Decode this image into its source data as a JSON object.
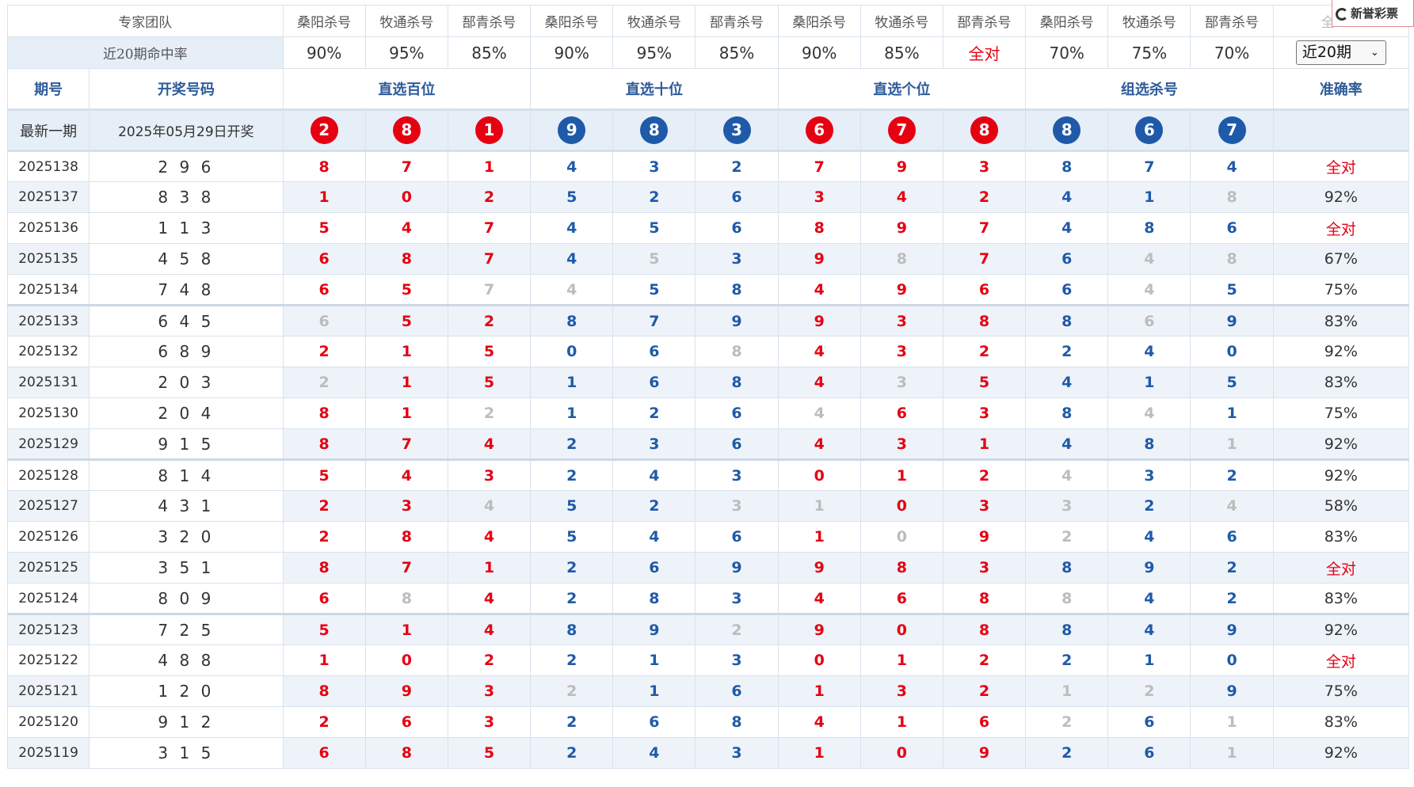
{
  "header": {
    "team_label": "专家团队",
    "rate_label": "近20期命中率",
    "experts": [
      "桑阳杀号",
      "牧通杀号",
      "郚青杀号",
      "桑阳杀号",
      "牧通杀号",
      "郚青杀号",
      "桑阳杀号",
      "牧通杀号",
      "郚青杀号",
      "桑阳杀号",
      "牧通杀号",
      "郚青杀号"
    ],
    "rates": [
      "90%",
      "95%",
      "85%",
      "90%",
      "95%",
      "85%",
      "90%",
      "85%",
      "全对",
      "70%",
      "75%",
      "70%"
    ],
    "period_select": "近20期",
    "partial_header_char": "全"
  },
  "groups": {
    "issue": "期号",
    "open": "开奖号码",
    "hundreds": "直选百位",
    "tens": "直选十位",
    "units": "直选个位",
    "group": "组选杀号",
    "accuracy": "准确率"
  },
  "latest": {
    "label": "最新一期",
    "date": "2025年05月29日开奖",
    "balls": [
      "2",
      "8",
      "1",
      "9",
      "8",
      "3",
      "6",
      "7",
      "8",
      "8",
      "6",
      "7"
    ],
    "ball_colors": [
      "red",
      "red",
      "red",
      "blue",
      "blue",
      "blue",
      "red",
      "red",
      "red",
      "blue",
      "blue",
      "blue"
    ]
  },
  "brand": {
    "name": "新誉彩票"
  },
  "rows": [
    {
      "issue": "2025138",
      "open": "2 9 6",
      "nums": [
        "8",
        "7",
        "1",
        "4",
        "3",
        "2",
        "7",
        "9",
        "3",
        "8",
        "7",
        "4"
      ],
      "miss": [],
      "acc": "全对"
    },
    {
      "issue": "2025137",
      "open": "8 3 8",
      "nums": [
        "1",
        "0",
        "2",
        "5",
        "2",
        "6",
        "3",
        "4",
        "2",
        "4",
        "1",
        "8"
      ],
      "miss": [
        11
      ],
      "acc": "92%"
    },
    {
      "issue": "2025136",
      "open": "1 1 3",
      "nums": [
        "5",
        "4",
        "7",
        "4",
        "5",
        "6",
        "8",
        "9",
        "7",
        "4",
        "8",
        "6"
      ],
      "miss": [],
      "acc": "全对"
    },
    {
      "issue": "2025135",
      "open": "4 5 8",
      "nums": [
        "6",
        "8",
        "7",
        "4",
        "5",
        "3",
        "9",
        "8",
        "7",
        "6",
        "4",
        "8"
      ],
      "miss": [
        4,
        7,
        10,
        11
      ],
      "acc": "67%"
    },
    {
      "issue": "2025134",
      "open": "7 4 8",
      "nums": [
        "6",
        "5",
        "7",
        "4",
        "5",
        "8",
        "4",
        "9",
        "6",
        "6",
        "4",
        "5"
      ],
      "miss": [
        2,
        3,
        10
      ],
      "acc": "75%"
    },
    {
      "issue": "2025133",
      "open": "6 4 5",
      "nums": [
        "6",
        "5",
        "2",
        "8",
        "7",
        "9",
        "9",
        "3",
        "8",
        "8",
        "6",
        "9"
      ],
      "miss": [
        0,
        10
      ],
      "acc": "83%"
    },
    {
      "issue": "2025132",
      "open": "6 8 9",
      "nums": [
        "2",
        "1",
        "5",
        "0",
        "6",
        "8",
        "4",
        "3",
        "2",
        "2",
        "4",
        "0"
      ],
      "miss": [
        5
      ],
      "acc": "92%"
    },
    {
      "issue": "2025131",
      "open": "2 0 3",
      "nums": [
        "2",
        "1",
        "5",
        "1",
        "6",
        "8",
        "4",
        "3",
        "5",
        "4",
        "1",
        "5"
      ],
      "miss": [
        0,
        7
      ],
      "acc": "83%"
    },
    {
      "issue": "2025130",
      "open": "2 0 4",
      "nums": [
        "8",
        "1",
        "2",
        "1",
        "2",
        "6",
        "4",
        "6",
        "3",
        "8",
        "4",
        "1"
      ],
      "miss": [
        2,
        6,
        10
      ],
      "acc": "75%"
    },
    {
      "issue": "2025129",
      "open": "9 1 5",
      "nums": [
        "8",
        "7",
        "4",
        "2",
        "3",
        "6",
        "4",
        "3",
        "1",
        "4",
        "8",
        "1"
      ],
      "miss": [
        11
      ],
      "acc": "92%"
    },
    {
      "issue": "2025128",
      "open": "8 1 4",
      "nums": [
        "5",
        "4",
        "3",
        "2",
        "4",
        "3",
        "0",
        "1",
        "2",
        "4",
        "3",
        "2"
      ],
      "miss": [
        9
      ],
      "acc": "92%"
    },
    {
      "issue": "2025127",
      "open": "4 3 1",
      "nums": [
        "2",
        "3",
        "4",
        "5",
        "2",
        "3",
        "1",
        "0",
        "3",
        "3",
        "2",
        "4"
      ],
      "miss": [
        2,
        5,
        6,
        9,
        11
      ],
      "acc": "58%"
    },
    {
      "issue": "2025126",
      "open": "3 2 0",
      "nums": [
        "2",
        "8",
        "4",
        "5",
        "4",
        "6",
        "1",
        "0",
        "9",
        "2",
        "4",
        "6"
      ],
      "miss": [
        7,
        9
      ],
      "acc": "83%"
    },
    {
      "issue": "2025125",
      "open": "3 5 1",
      "nums": [
        "8",
        "7",
        "1",
        "2",
        "6",
        "9",
        "9",
        "8",
        "3",
        "8",
        "9",
        "2"
      ],
      "miss": [],
      "acc": "全对"
    },
    {
      "issue": "2025124",
      "open": "8 0 9",
      "nums": [
        "6",
        "8",
        "4",
        "2",
        "8",
        "3",
        "4",
        "6",
        "8",
        "8",
        "4",
        "2"
      ],
      "miss": [
        1,
        9
      ],
      "acc": "83%"
    },
    {
      "issue": "2025123",
      "open": "7 2 5",
      "nums": [
        "5",
        "1",
        "4",
        "8",
        "9",
        "2",
        "9",
        "0",
        "8",
        "8",
        "4",
        "9"
      ],
      "miss": [
        5
      ],
      "acc": "92%"
    },
    {
      "issue": "2025122",
      "open": "4 8 8",
      "nums": [
        "1",
        "0",
        "2",
        "2",
        "1",
        "3",
        "0",
        "1",
        "2",
        "2",
        "1",
        "0"
      ],
      "miss": [],
      "acc": "全对"
    },
    {
      "issue": "2025121",
      "open": "1 2 0",
      "nums": [
        "8",
        "9",
        "3",
        "2",
        "1",
        "6",
        "1",
        "3",
        "2",
        "1",
        "2",
        "9"
      ],
      "miss": [
        3,
        9,
        10
      ],
      "acc": "75%"
    },
    {
      "issue": "2025120",
      "open": "9 1 2",
      "nums": [
        "2",
        "6",
        "3",
        "2",
        "6",
        "8",
        "4",
        "1",
        "6",
        "2",
        "6",
        "1"
      ],
      "miss": [
        9,
        11
      ],
      "acc": "83%"
    },
    {
      "issue": "2025119",
      "open": "3 1 5",
      "nums": [
        "6",
        "8",
        "5",
        "2",
        "4",
        "3",
        "1",
        "0",
        "9",
        "2",
        "6",
        "1"
      ],
      "miss": [
        11
      ],
      "acc": "92%"
    }
  ],
  "colors": {
    "red": "#e60012",
    "blue": "#1f5aa8",
    "miss": "#bcbcbc",
    "header_bg": "#e6eef8",
    "alt_bg": "#eef3fa"
  }
}
